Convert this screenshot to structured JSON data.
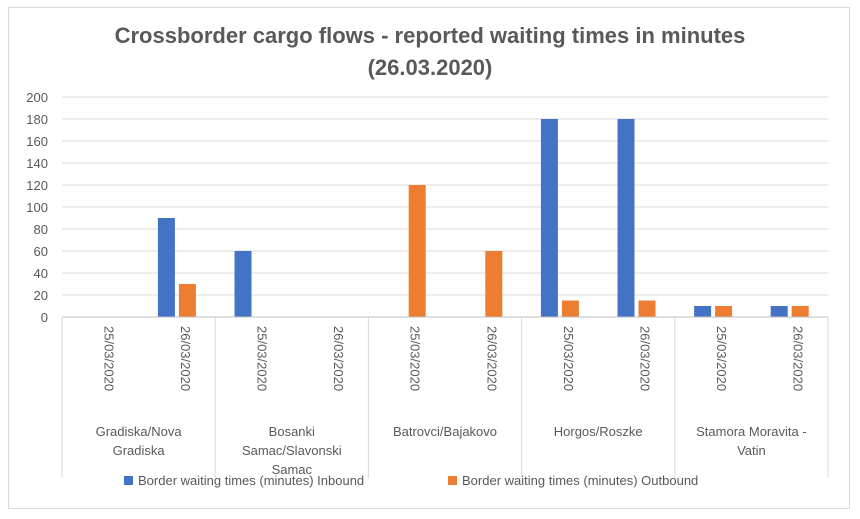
{
  "chart_data": {
    "type": "bar",
    "title_line1": "Crossborder cargo flows - reported waiting times in minutes",
    "title_line2": "(26.03.2020)",
    "ylim": [
      0,
      200
    ],
    "yticks": [
      "0",
      "20",
      "40",
      "60",
      "80",
      "100",
      "120",
      "140",
      "160",
      "180",
      "200"
    ],
    "groups": [
      {
        "label": [
          "Gradiska/Nova",
          "Gradiska"
        ],
        "dates": [
          "25/03/2020",
          "26/03/2020"
        ]
      },
      {
        "label": [
          "Bosanki",
          "Samac/Slavonski",
          "Samac"
        ],
        "dates": [
          "25/03/2020",
          "26/03/2020"
        ]
      },
      {
        "label": [
          "Batrovci/Bajakovo"
        ],
        "dates": [
          "25/03/2020",
          "26/03/2020"
        ]
      },
      {
        "label": [
          "Horgos/Roszke"
        ],
        "dates": [
          "25/03/2020",
          "26/03/2020"
        ]
      },
      {
        "label": [
          "Stamora Moravita -",
          "Vatin"
        ],
        "dates": [
          "25/03/2020",
          "26/03/2020"
        ]
      }
    ],
    "series": [
      {
        "name": "Border waiting times (minutes) Inbound",
        "color": "#4472c4",
        "values": [
          0,
          90,
          60,
          0,
          0,
          0,
          180,
          180,
          10,
          10
        ]
      },
      {
        "name": "Border waiting times (minutes) Outbound",
        "color": "#ed7d31",
        "values": [
          0,
          30,
          0,
          0,
          120,
          60,
          15,
          15,
          10,
          10
        ]
      }
    ],
    "grid": true,
    "legend_position": "bottom"
  }
}
